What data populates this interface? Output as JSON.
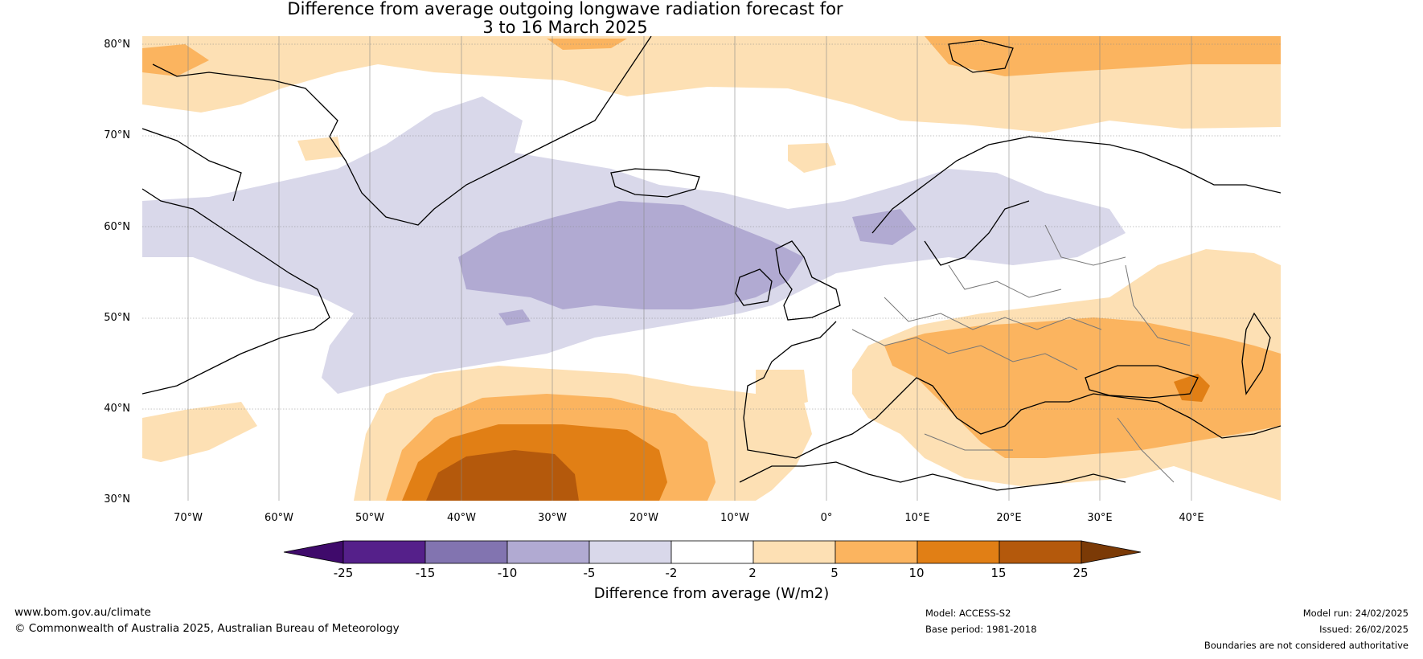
{
  "title": {
    "line1": "Difference from average outgoing longwave radiation forecast for",
    "line2": "3 to 16 March 2025"
  },
  "map": {
    "lat_labels": [
      "80°N",
      "70°N",
      "60°N",
      "50°N",
      "40°N",
      "30°N"
    ],
    "lon_labels": [
      "70°W",
      "60°W",
      "50°W",
      "40°W",
      "30°W",
      "20°W",
      "10°W",
      "0°",
      "10°E",
      "20°E",
      "30°E",
      "40°E"
    ],
    "lon_range": [
      -75,
      50
    ],
    "lat_range": [
      30,
      81
    ]
  },
  "colorbar": {
    "ticks": [
      "-25",
      "-15",
      "-10",
      "-5",
      "-2",
      "2",
      "5",
      "10",
      "15",
      "25"
    ],
    "colors": [
      "#3f0a6b",
      "#55208a",
      "#8274b0",
      "#b1aad2",
      "#d9d8ea",
      "#ffffff",
      "#fde0b4",
      "#fbb45f",
      "#e17f15",
      "#b4590c",
      "#7b3a06"
    ],
    "label": "Difference from average (W/m2)"
  },
  "footer": {
    "website": "www.bom.gov.au/climate",
    "copyright": "© Commonwealth of Australia 2025, Australian Bureau of Meteorology",
    "model": "Model: ACCESS-S2",
    "base_period": "Base period: 1981-2018",
    "model_run": "Model run: 24/02/2025",
    "issued": "Issued: 26/02/2025",
    "disclaimer": "Boundaries are not considered authoritative"
  }
}
